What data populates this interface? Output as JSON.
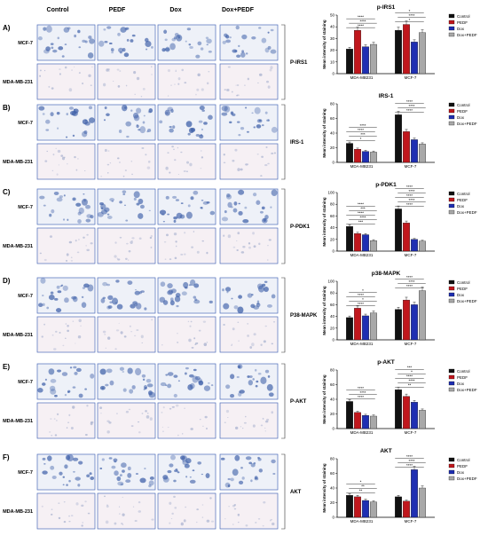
{
  "column_headers": [
    "Control",
    "PEDF",
    "Dox",
    "Dox+PEDF"
  ],
  "cell_lines": [
    "MCF-7",
    "MDA-MB-231"
  ],
  "colors": {
    "Control": "#111111",
    "PEDF": "#c0171d",
    "Dox": "#1f2fb2",
    "Dox+PEDF": "#a8a8a8",
    "mcf7_tissue": "#3d5fa8",
    "mcf7_bg": "#eef1f8",
    "mda_tissue": "#9aa6c8",
    "mda_bg": "#f6f0f4",
    "frame": "#4a6ab8"
  },
  "panels": [
    {
      "letter": "A)",
      "marker": "P-IRS1"
    },
    {
      "letter": "B)",
      "marker": "IRS-1"
    },
    {
      "letter": "C)",
      "marker": "P-PDK1"
    },
    {
      "letter": "D)",
      "marker": "P38-MAPK"
    },
    {
      "letter": "E)",
      "marker": "P-AKT"
    },
    {
      "letter": "F)",
      "marker": "AKT"
    }
  ],
  "chart_data": [
    {
      "type": "bar",
      "title": "p-IRS1",
      "ylabel": "Mean intensity of staining",
      "categories": [
        "MDA-MB231",
        "MCF-7"
      ],
      "ylim": [
        0,
        50
      ],
      "yticks": [
        0,
        10,
        20,
        30,
        40,
        50
      ],
      "series": [
        {
          "name": "Control",
          "values": [
            21,
            37
          ]
        },
        {
          "name": "PEDF",
          "values": [
            37,
            42
          ]
        },
        {
          "name": "Dox",
          "values": [
            23,
            27
          ]
        },
        {
          "name": "Dox+PEDF",
          "values": [
            25,
            35
          ]
        }
      ],
      "sig_left": [
        "****",
        "****",
        "****"
      ],
      "sig_right": [
        "*",
        "****",
        "*"
      ]
    },
    {
      "type": "bar",
      "title": "IRS-1",
      "ylabel": "Mean intensity of staining",
      "categories": [
        "MDA-MB231",
        "MCF-7"
      ],
      "ylim": [
        0,
        80
      ],
      "yticks": [
        0,
        20,
        40,
        60,
        80
      ],
      "series": [
        {
          "name": "Control",
          "values": [
            26,
            65
          ]
        },
        {
          "name": "PEDF",
          "values": [
            18,
            42
          ]
        },
        {
          "name": "Dox",
          "values": [
            15,
            31
          ]
        },
        {
          "name": "Dox+PEDF",
          "values": [
            14,
            25
          ]
        }
      ],
      "sig_left": [
        "*",
        "***",
        "****",
        "****"
      ],
      "sig_right": [
        "****",
        "****",
        "****",
        "***",
        "****"
      ]
    },
    {
      "type": "bar",
      "title": "p-PDK1",
      "ylabel": "Mean intensity of staining",
      "categories": [
        "MDA-MB231",
        "MCF-7"
      ],
      "ylim": [
        0,
        100
      ],
      "yticks": [
        0,
        20,
        40,
        60,
        80,
        100
      ],
      "series": [
        {
          "name": "Control",
          "values": [
            42,
            72
          ]
        },
        {
          "name": "PEDF",
          "values": [
            30,
            48
          ]
        },
        {
          "name": "Dox",
          "values": [
            28,
            20
          ]
        },
        {
          "name": "Dox+PEDF",
          "values": [
            18,
            17
          ]
        }
      ],
      "sig_left": [
        "***",
        "****",
        "****",
        "***",
        "****"
      ],
      "sig_right": [
        "****",
        "****",
        "****",
        "****",
        "****"
      ]
    },
    {
      "type": "bar",
      "title": "p38-MAPK",
      "ylabel": "Mean intensity of staining",
      "categories": [
        "MDA-MB231",
        "MCF-7"
      ],
      "ylim": [
        0,
        100
      ],
      "yticks": [
        0,
        20,
        40,
        60,
        80,
        100
      ],
      "series": [
        {
          "name": "Control",
          "values": [
            38,
            52
          ]
        },
        {
          "name": "PEDF",
          "values": [
            54,
            68
          ]
        },
        {
          "name": "Dox",
          "values": [
            41,
            60
          ]
        },
        {
          "name": "Dox+PEDF",
          "values": [
            46,
            84
          ]
        }
      ],
      "sig_left": [
        "****",
        "*",
        "****",
        "*"
      ],
      "sig_right": [
        "****",
        "****",
        "****",
        "**",
        "****"
      ]
    },
    {
      "type": "bar",
      "title": "p-AKT",
      "ylabel": "Mean intensity of staining",
      "categories": [
        "MDA-MB231",
        "MCF-7"
      ],
      "ylim": [
        0,
        80
      ],
      "yticks": [
        0,
        20,
        40,
        60,
        80
      ],
      "series": [
        {
          "name": "Control",
          "values": [
            37,
            53
          ]
        },
        {
          "name": "PEDF",
          "values": [
            22,
            44
          ]
        },
        {
          "name": "Dox",
          "values": [
            18,
            36
          ]
        },
        {
          "name": "Dox+PEDF",
          "values": [
            17,
            25
          ]
        }
      ],
      "sig_left": [
        "****",
        "****",
        "****"
      ],
      "sig_right": [
        "**",
        "****",
        "****",
        "*",
        "***"
      ]
    },
    {
      "type": "bar",
      "title": "AKT",
      "ylabel": "Mean intensity of staining",
      "categories": [
        "MDA-MB231",
        "MCF-7"
      ],
      "ylim": [
        0,
        80
      ],
      "yticks": [
        0,
        20,
        40,
        60,
        80
      ],
      "series": [
        {
          "name": "Control",
          "values": [
            30,
            28
          ]
        },
        {
          "name": "PEDF",
          "values": [
            28,
            22
          ]
        },
        {
          "name": "Dox",
          "values": [
            23,
            65
          ]
        },
        {
          "name": "Dox+PEDF",
          "values": [
            21,
            40
          ]
        }
      ],
      "sig_left": [
        "**",
        "**",
        "*"
      ],
      "sig_right": [
        "****",
        "****",
        "****",
        "****",
        "****"
      ]
    }
  ]
}
